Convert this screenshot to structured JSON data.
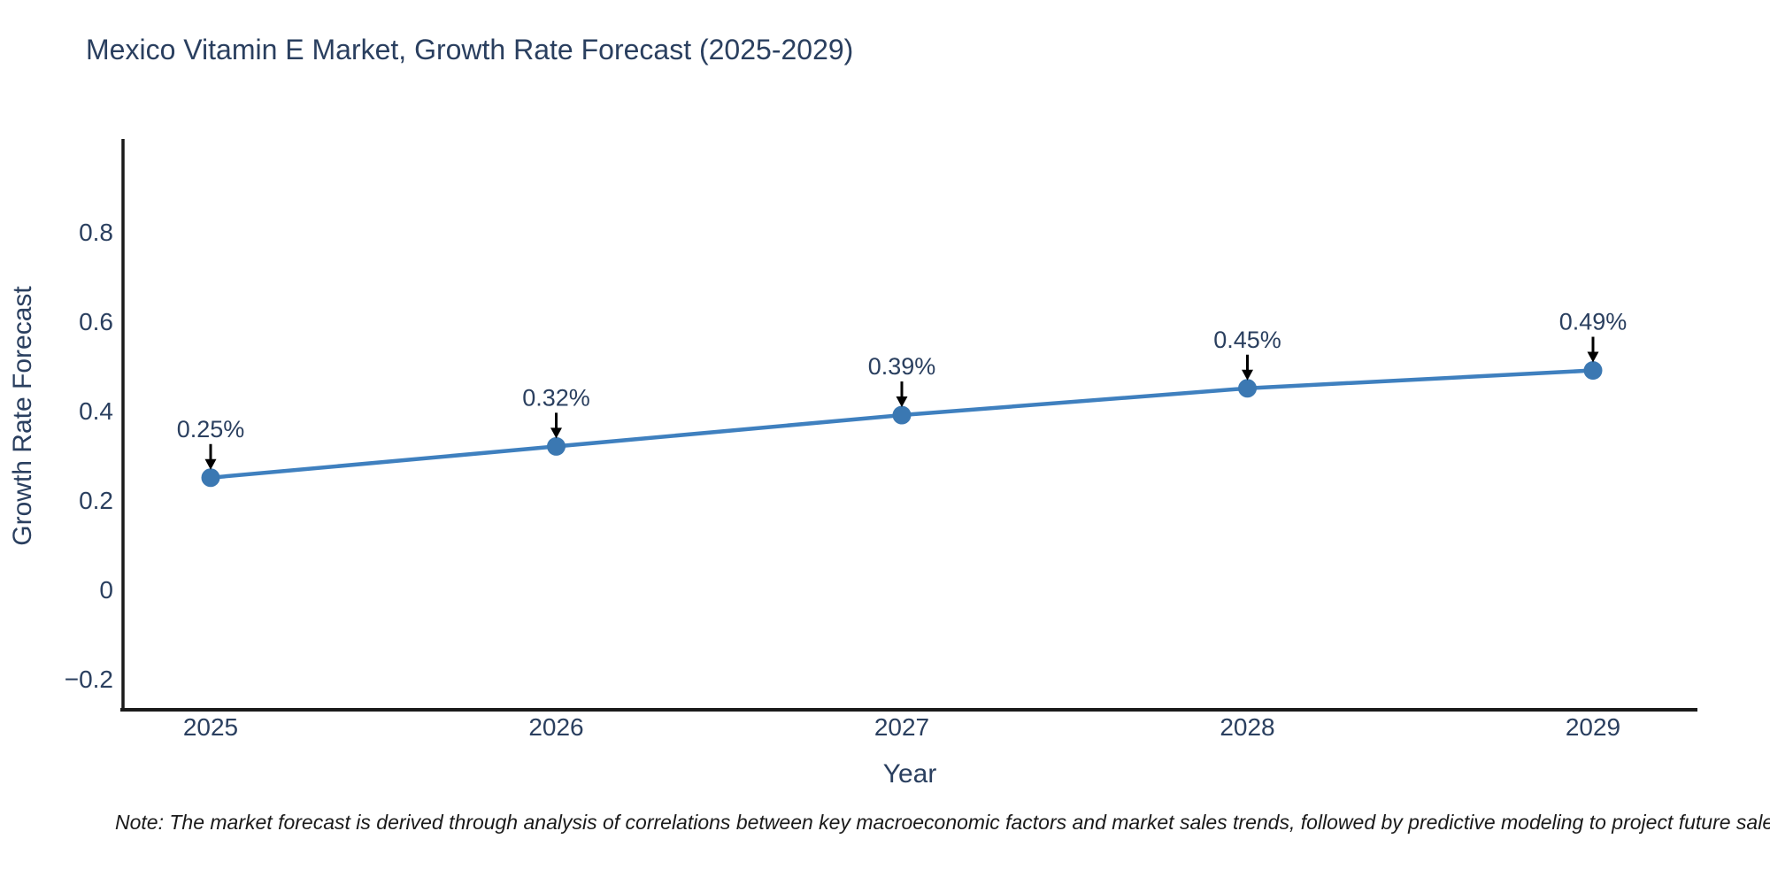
{
  "title": "Mexico Vitamin E Market, Growth Rate Forecast (2025-2029)",
  "note": "Note: The market forecast is derived through analysis of correlations between key macroeconomic factors and market sales trends, followed by predictive modeling to project future sales.",
  "chart_data": {
    "type": "line",
    "title": "Mexico Vitamin E Market, Growth Rate Forecast (2025-2029)",
    "xlabel": "Year",
    "ylabel": "Growth Rate Forecast",
    "x": [
      2025,
      2026,
      2027,
      2028,
      2029
    ],
    "y": [
      0.25,
      0.32,
      0.39,
      0.45,
      0.49
    ],
    "point_labels": [
      "0.25%",
      "0.32%",
      "0.39%",
      "0.45%",
      "0.49%"
    ],
    "y_ticks": [
      -0.2,
      0,
      0.2,
      0.4,
      0.6,
      0.8
    ],
    "ylim": [
      -0.26,
      0.99
    ],
    "grid": false,
    "legend_position": "none",
    "colors": {
      "line": "#3f80bf",
      "marker": "#3b78b2",
      "axis": "#1a1a1a",
      "text": "#2a3f5f",
      "arrow": "#000000"
    }
  }
}
